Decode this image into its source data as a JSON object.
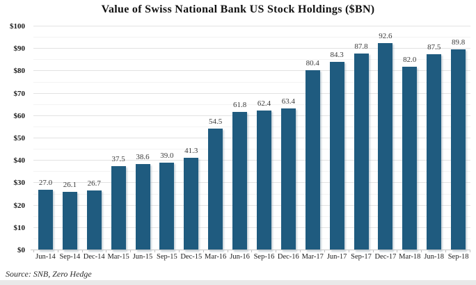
{
  "title": "Value of Swiss National Bank US Stock Holdings ($BN)",
  "source": "Source: SNB, Zero Hedge",
  "colors": {
    "bar": "#1f5b7f",
    "grid_major": "#e2e2e2",
    "grid_minor": "#f3f3f3",
    "title_text": "#111111",
    "axis_text": "#1a1a1a",
    "bottom_strip": "#e9e9e9"
  },
  "chart_data": {
    "type": "bar",
    "title": "Value of Swiss National Bank US Stock Holdings ($BN)",
    "categories": [
      "Jun-14",
      "Sep-14",
      "Dec-14",
      "Mar-15",
      "Jun-15",
      "Sep-15",
      "Dec-15",
      "Mar-16",
      "Jun-16",
      "Sep-16",
      "Dec-16",
      "Mar-17",
      "Jun-17",
      "Sep-17",
      "Dec-17",
      "Mar-18",
      "Jun-18",
      "Sep-18"
    ],
    "values": [
      27.0,
      26.1,
      26.7,
      37.5,
      38.6,
      39.0,
      41.3,
      54.5,
      61.8,
      62.4,
      63.4,
      80.4,
      84.3,
      87.8,
      92.6,
      82.0,
      87.5,
      89.8
    ],
    "data_labels": [
      "27.0",
      "26.1",
      "26.7",
      "37.5",
      "38.6",
      "39.0",
      "41.3",
      "54.5",
      "61.8",
      "62.4",
      "63.4",
      "80.4",
      "84.3",
      "87.8",
      "92.6",
      "82.0",
      "87.5",
      "89.8"
    ],
    "xlabel": "",
    "ylabel": "",
    "ylim": [
      0,
      100
    ],
    "ytick_step": 10,
    "ytick_minor_step": 5,
    "ytick_labels": [
      "$0",
      "$10",
      "$20",
      "$30",
      "$40",
      "$50",
      "$60",
      "$70",
      "$80",
      "$90",
      "$100"
    ],
    "grid": true,
    "legend": false,
    "source_note": "Source: SNB, Zero Hedge"
  }
}
